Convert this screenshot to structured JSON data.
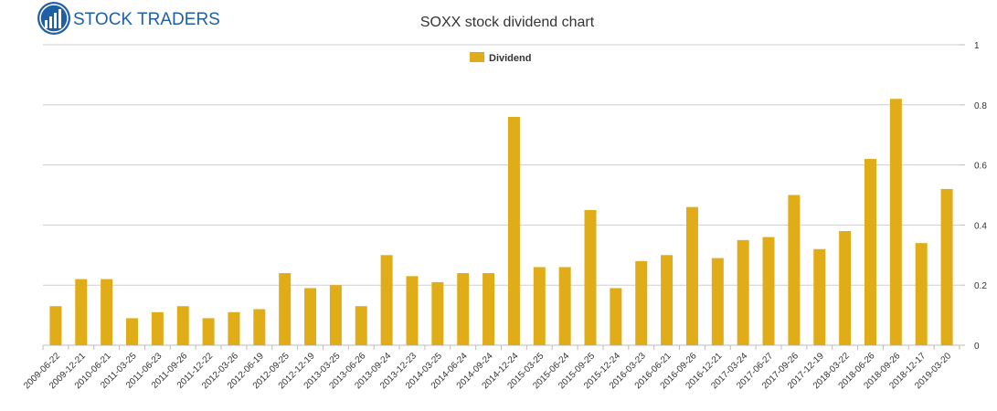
{
  "logo": {
    "text": "STOCK TRADERS"
  },
  "colors": {
    "bar": "#e0ac18",
    "grid": "#cfcfcf",
    "axis": "#bdbdbd",
    "text": "#333333",
    "logo_blue": "#1f5fa6"
  },
  "chart_data": {
    "type": "bar",
    "title": "SOXX stock dividend chart",
    "legend": {
      "position": "top-center",
      "entries": [
        "Dividend"
      ]
    },
    "categories": [
      "2009-06-22",
      "2009-12-21",
      "2010-06-21",
      "2011-03-25",
      "2011-06-23",
      "2011-09-26",
      "2011-12-22",
      "2012-03-26",
      "2012-06-19",
      "2012-09-25",
      "2012-12-19",
      "2013-03-25",
      "2013-06-26",
      "2013-09-24",
      "2013-12-23",
      "2014-03-25",
      "2014-06-24",
      "2014-09-24",
      "2014-12-24",
      "2015-03-25",
      "2015-06-24",
      "2015-09-25",
      "2015-12-24",
      "2016-03-23",
      "2016-06-21",
      "2016-09-26",
      "2016-12-21",
      "2017-03-24",
      "2017-06-27",
      "2017-09-26",
      "2017-12-19",
      "2018-03-22",
      "2018-06-26",
      "2018-09-26",
      "2018-12-17",
      "2019-03-20"
    ],
    "series": [
      {
        "name": "Dividend",
        "values": [
          0.13,
          0.22,
          0.22,
          0.09,
          0.11,
          0.13,
          0.09,
          0.11,
          0.12,
          0.24,
          0.19,
          0.2,
          0.13,
          0.3,
          0.23,
          0.21,
          0.24,
          0.24,
          0.76,
          0.26,
          0.26,
          0.45,
          0.19,
          0.28,
          0.3,
          0.46,
          0.29,
          0.35,
          0.36,
          0.5,
          0.32,
          0.38,
          0.62,
          0.82,
          0.34,
          0.52
        ]
      }
    ],
    "yticks": [
      "0",
      "0.2",
      "0.4",
      "0.6",
      "0.8",
      "1"
    ],
    "ylim": [
      0,
      1
    ],
    "grid": true
  }
}
